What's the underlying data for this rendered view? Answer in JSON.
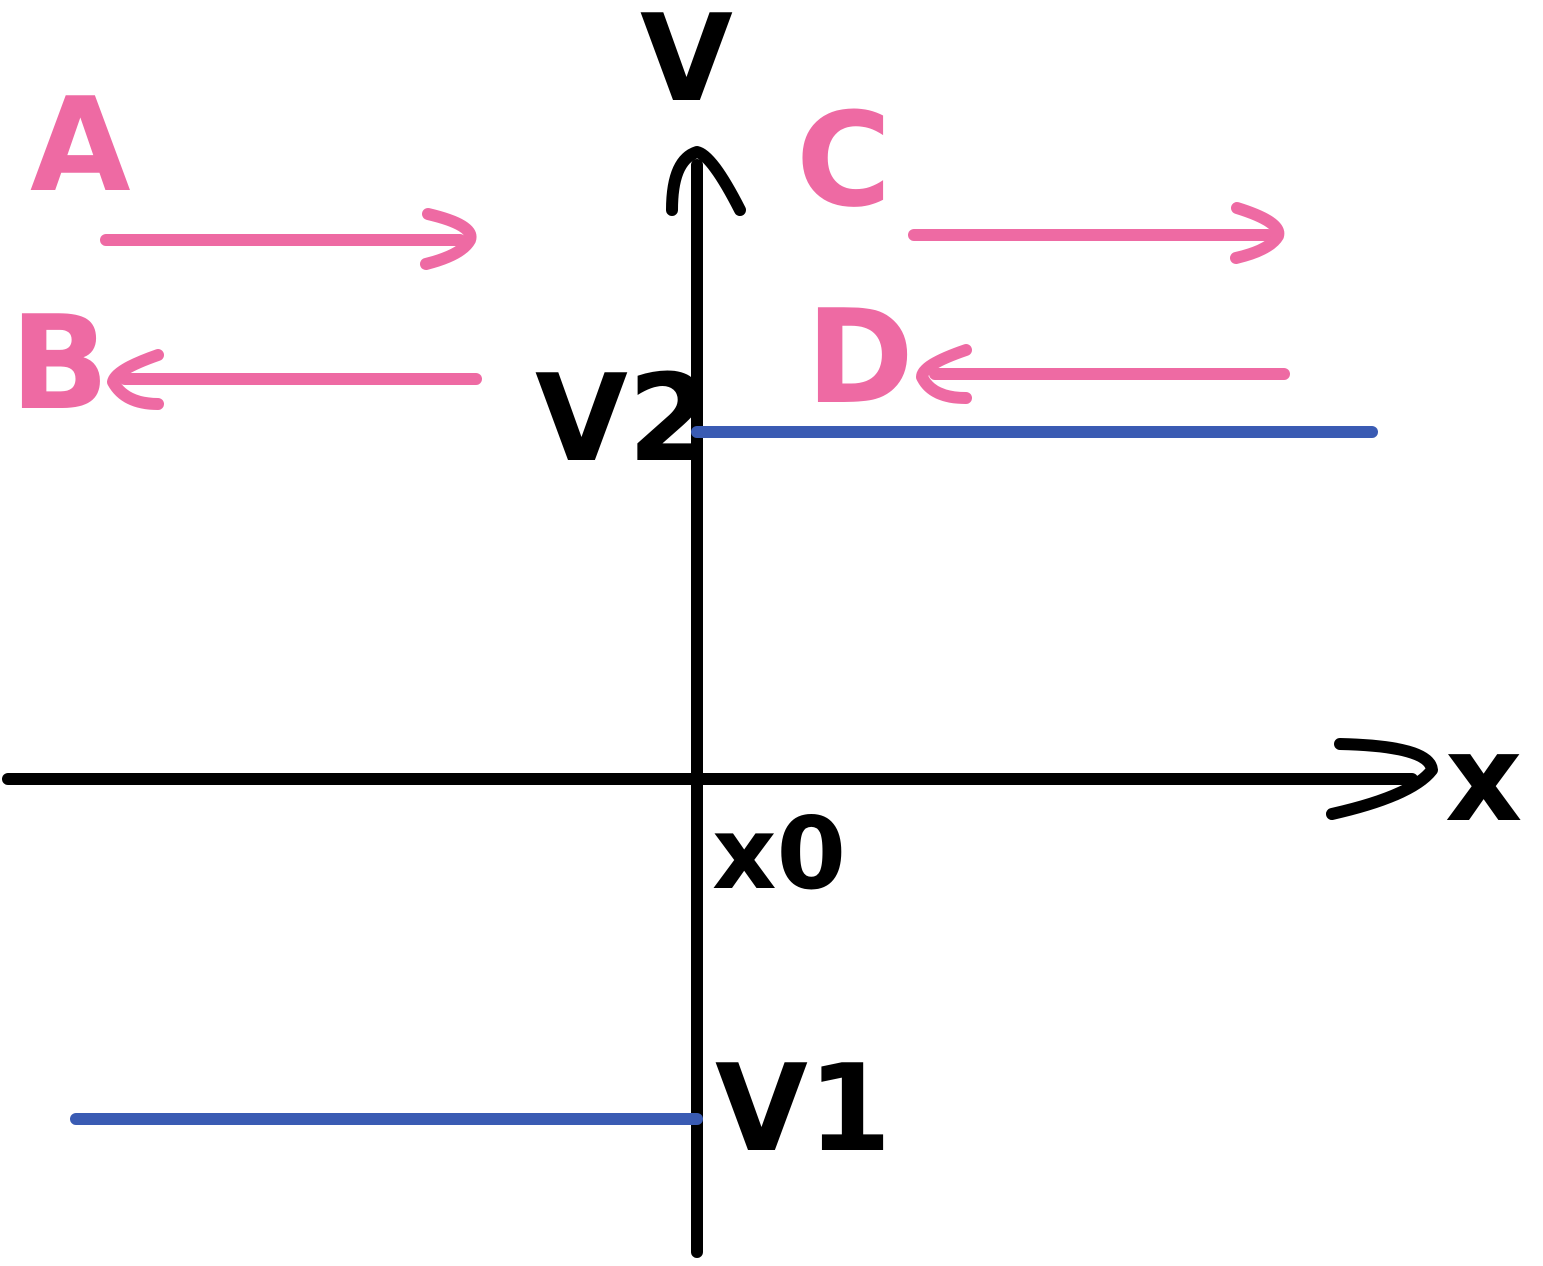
{
  "axes": {
    "y_label": "V",
    "x_label": "x"
  },
  "potential": {
    "left_level_label": "V1",
    "right_level_label": "V2",
    "step_label": "x0"
  },
  "waves": {
    "a_label": "A",
    "b_label": "B",
    "c_label": "C",
    "d_label": "D"
  },
  "colors": {
    "axis": "#000000",
    "potential": "#3a5bb3",
    "waves": "#ee6aa3"
  }
}
